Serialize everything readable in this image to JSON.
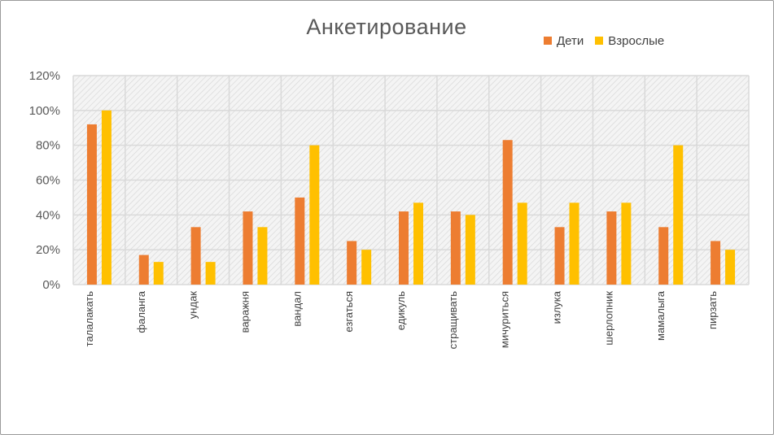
{
  "chart_data": {
    "type": "bar",
    "title": "Анкетирование",
    "categories": [
      "талалакать",
      "фаланга",
      "ундак",
      "варажня",
      "вандал",
      "езгаться",
      "едикуль",
      "стращивать",
      "мичуриться",
      "излука",
      "шерлопник",
      "мамалыга",
      "пирзать"
    ],
    "series": [
      {
        "name": "Дети",
        "color": "#ED7D31",
        "values": [
          92,
          17,
          33,
          42,
          50,
          25,
          42,
          42,
          83,
          33,
          42,
          33,
          25
        ]
      },
      {
        "name": "Взрослые",
        "color": "#FFC000",
        "values": [
          100,
          13,
          13,
          33,
          80,
          20,
          47,
          40,
          47,
          47,
          47,
          80,
          20
        ]
      }
    ],
    "y_unit": "%",
    "ylim": [
      0,
      120
    ],
    "y_ticks": [
      "0%",
      "20%",
      "40%",
      "60%",
      "80%",
      "100%",
      "120%"
    ],
    "grid": true,
    "plot_background": "hatched light gray",
    "legend_position": "top-right"
  }
}
